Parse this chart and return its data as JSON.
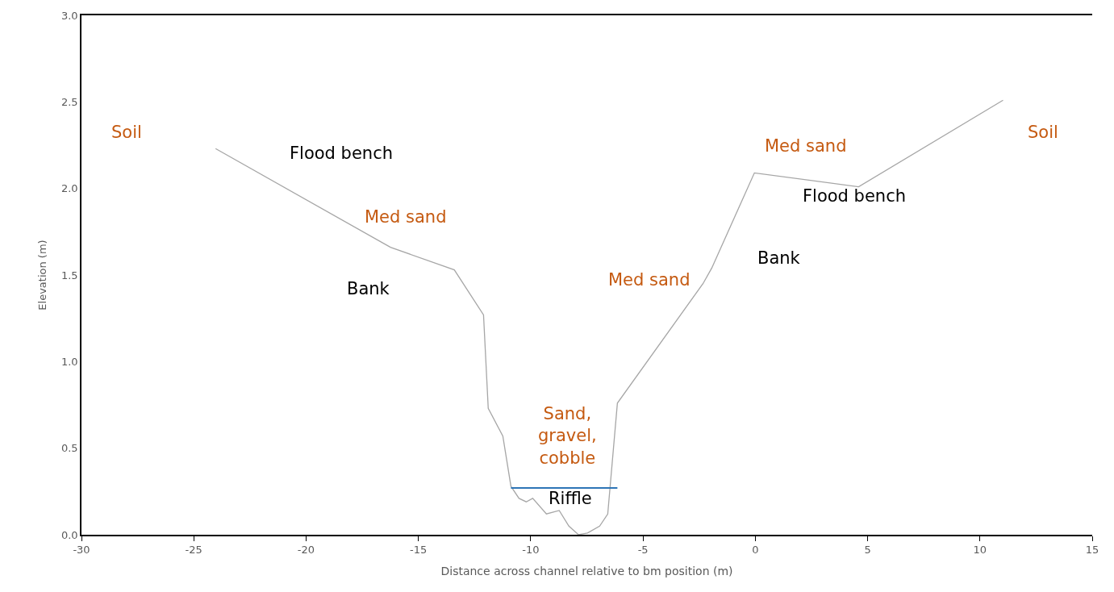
{
  "chart_data": {
    "type": "line",
    "xlabel": "Distance across channel relative to bm position (m)",
    "ylabel": "Elevation (m)",
    "series": [
      {
        "color": "#a6a6a6",
        "x": [
          -24.03,
          -16.24,
          -13.4,
          -12.1,
          -11.89,
          -11.24,
          -10.88,
          -10.52,
          -10.2,
          -9.91,
          -9.3,
          -8.73,
          -8.3,
          -7.87,
          -7.47,
          -6.93,
          -6.57,
          -6.14,
          -2.33,
          -1.94,
          -0.04,
          4.6,
          11.03
        ],
        "values": [
          2.23,
          1.66,
          1.53,
          1.27,
          0.73,
          0.57,
          0.28,
          0.21,
          0.19,
          0.21,
          0.12,
          0.14,
          0.05,
          0.0,
          0.01,
          0.05,
          0.12,
          0.76,
          1.45,
          1.54,
          2.09,
          2.01,
          2.51
        ]
      },
      {
        "color": "#2e75b6",
        "x": [
          -10.88,
          -6.14
        ],
        "values": [
          0.27,
          0.27
        ]
      }
    ],
    "annotations": [
      "Soil",
      "Flood bench",
      "Med sand",
      "Bank",
      "Sand,\ngravel,\ncobble",
      "Riffle",
      "Med sand",
      "Med sand",
      "Flood bench",
      "Bank",
      "Soil"
    ],
    "xlim": [
      -30,
      15
    ],
    "xticks": [
      -30,
      -25,
      -20,
      -15,
      -10,
      -5,
      0,
      5,
      10,
      15
    ],
    "ylim": [
      0,
      3.0
    ],
    "yticks": [
      {
        "value": 0,
        "label": "0.0"
      },
      0.5,
      {
        "value": 1,
        "label": "1.0"
      },
      1.5,
      {
        "value": 2,
        "label": "2.0"
      },
      2.5,
      {
        "value": 3,
        "label": "3.0"
      }
    ],
    "marker": "none",
    "line_style": "solid"
  }
}
